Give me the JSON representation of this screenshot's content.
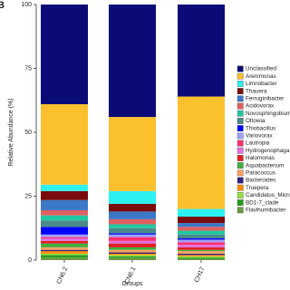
{
  "chart_data": {
    "type": "stacked_bar",
    "panel_label": "B",
    "ylabel": "Relative Abundance (%)",
    "xlabel": "Groups",
    "categories": [
      "CN6.2",
      "CN6.1",
      "CH17"
    ],
    "ylim": [
      0,
      100
    ],
    "yticks": [
      0,
      25,
      50,
      75,
      100
    ],
    "series": [
      {
        "name": "Unclassified",
        "color": "#0b0b78",
        "values": [
          39,
          44,
          36
        ]
      },
      {
        "name": "Arenimonas",
        "color": "#fbc02d",
        "values": [
          31.5,
          29,
          44
        ]
      },
      {
        "name": "Limnobacter",
        "color": "#2ef0f0",
        "values": [
          2.5,
          5,
          3
        ]
      },
      {
        "name": "Thauera",
        "color": "#7a0c0c",
        "values": [
          3.5,
          3,
          2.5
        ]
      },
      {
        "name": "Ferruginibacter",
        "color": "#3c78c8",
        "values": [
          4,
          3,
          1.5
        ]
      },
      {
        "name": "Acidovorax",
        "color": "#e06060",
        "values": [
          2,
          2,
          1.5
        ]
      },
      {
        "name": "Novosphingobium",
        "color": "#20c8a0",
        "values": [
          2,
          1.5,
          1.5
        ]
      },
      {
        "name": "Ottowia",
        "color": "#4a8a8a",
        "values": [
          2.5,
          2,
          1.5
        ]
      },
      {
        "name": "Thiobacillus",
        "color": "#0000ff",
        "values": [
          3,
          0.5,
          0.5
        ]
      },
      {
        "name": "Variovorax",
        "color": "#a0a0ff",
        "values": [
          1,
          1,
          1
        ]
      },
      {
        "name": "Lautropia",
        "color": "#ff3070",
        "values": [
          0.5,
          1.5,
          1
        ]
      },
      {
        "name": "Hydrogenophaga",
        "color": "#e070e0",
        "values": [
          1,
          1,
          1
        ]
      },
      {
        "name": "Halomonas",
        "color": "#e02020",
        "values": [
          1,
          1.5,
          1
        ]
      },
      {
        "name": "Aquabacterium",
        "color": "#40b040",
        "values": [
          1.5,
          1,
          0.5
        ]
      },
      {
        "name": "Paracoccus",
        "color": "#ffa060",
        "values": [
          1,
          1,
          1
        ]
      },
      {
        "name": "Bacteroides",
        "color": "#302080",
        "values": [
          0.5,
          0.5,
          0.5
        ]
      },
      {
        "name": "Truepera",
        "color": "#ff8c00",
        "values": [
          1,
          0.5,
          0.5
        ]
      },
      {
        "name": "Candidatus_Micro",
        "color": "#98e040",
        "values": [
          0.5,
          0.5,
          0.5
        ]
      },
      {
        "name": "BD1-7_clade",
        "color": "#20a020",
        "values": [
          1,
          0.5,
          0.5
        ]
      },
      {
        "name": "Flavihumibacter",
        "color": "#6a9a40",
        "values": [
          1,
          1,
          0.5
        ]
      }
    ]
  }
}
